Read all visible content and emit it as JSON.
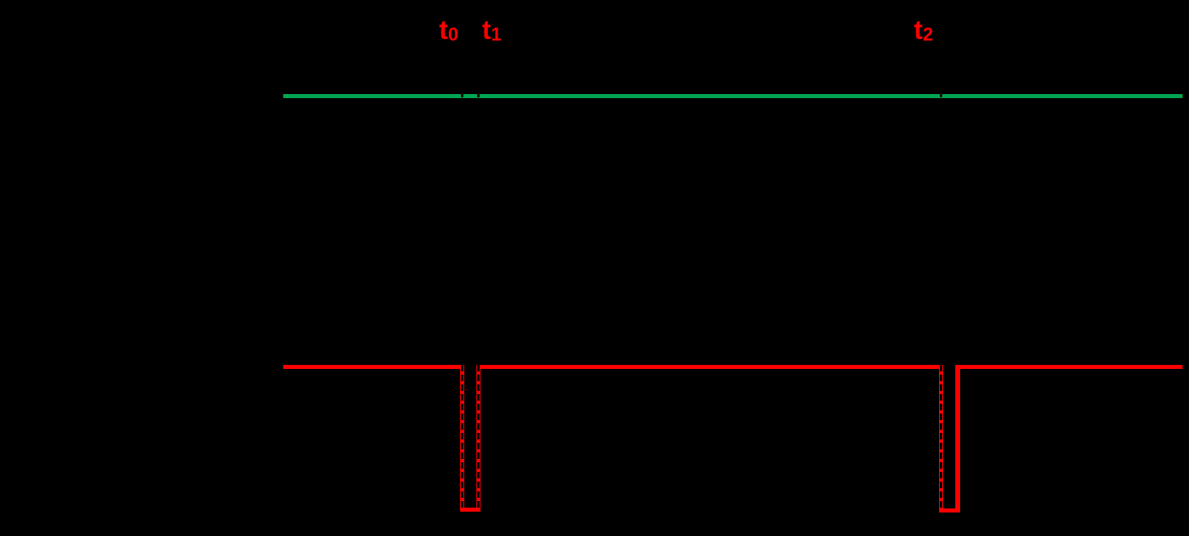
{
  "colors": {
    "background": "#000000",
    "green": "#00a651",
    "red": "#ff0000",
    "dash": "#000000"
  },
  "markers": [
    {
      "base": "t",
      "sub": "0"
    },
    {
      "base": "t",
      "sub": "1"
    },
    {
      "base": "t",
      "sub": "2"
    }
  ],
  "diagram": {
    "type": "timing-diagram",
    "signals": [
      {
        "name": "green-signal",
        "color": "#00a651",
        "shape": "constant-high",
        "tick_marks_at": [
          "t0",
          "t1",
          "t2"
        ]
      },
      {
        "name": "red-signal",
        "color": "#ff0000",
        "shape": "high-with-low-pulses",
        "pulses": [
          {
            "start": "t0",
            "end": "t1",
            "edges_dashed": [
              "start",
              "end"
            ]
          },
          {
            "start": "t2",
            "end": "unlabeled",
            "edges_dashed": [
              "start"
            ]
          }
        ]
      }
    ],
    "time_markers": [
      "t0",
      "t1",
      "t2"
    ],
    "marker_style": "black-dashed-vertical-lines"
  }
}
